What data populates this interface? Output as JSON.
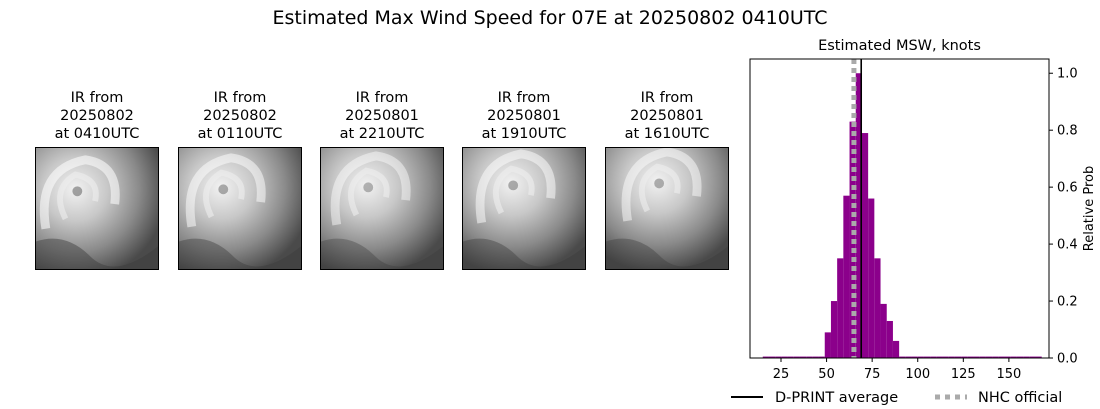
{
  "title": "Estimated Max Wind Speed for 07E at 20250802 0410UTC",
  "ir_panels": [
    {
      "line1": "IR from",
      "line2": "20250802",
      "line3": "at 0410UTC",
      "icon": "satellite-ir-image"
    },
    {
      "line1": "IR from",
      "line2": "20250802",
      "line3": "at 0110UTC",
      "icon": "satellite-ir-image"
    },
    {
      "line1": "IR from",
      "line2": "20250801",
      "line3": "at 2210UTC",
      "icon": "satellite-ir-image"
    },
    {
      "line1": "IR from",
      "line2": "20250801",
      "line3": "at 1910UTC",
      "icon": "satellite-ir-image"
    },
    {
      "line1": "IR from",
      "line2": "20250801",
      "line3": "at 1610UTC",
      "icon": "satellite-ir-image"
    }
  ],
  "chart_data": {
    "type": "bar",
    "title": "Estimated MSW, knots",
    "xlabel": "",
    "ylabel": "Relative Prob",
    "xlim": [
      8,
      172
    ],
    "ylim": [
      0,
      1.05
    ],
    "xticks": [
      25,
      50,
      75,
      100,
      125,
      150
    ],
    "yticks": [
      0.0,
      0.2,
      0.4,
      0.6,
      0.8,
      1.0
    ],
    "ytick_labels": [
      "0.0",
      "0.2",
      "0.4",
      "0.6",
      "0.8",
      "1.0"
    ],
    "bar_width": 3.4,
    "bar_color": "#8b008b",
    "bars": [
      {
        "x": 16.7,
        "value": 0.005
      },
      {
        "x": 20.1,
        "value": 0.005
      },
      {
        "x": 23.5,
        "value": 0.005
      },
      {
        "x": 26.9,
        "value": 0.005
      },
      {
        "x": 30.3,
        "value": 0.005
      },
      {
        "x": 33.7,
        "value": 0.005
      },
      {
        "x": 37.1,
        "value": 0.005
      },
      {
        "x": 40.5,
        "value": 0.005
      },
      {
        "x": 43.9,
        "value": 0.005
      },
      {
        "x": 47.3,
        "value": 0.005
      },
      {
        "x": 50.7,
        "value": 0.09
      },
      {
        "x": 54.1,
        "value": 0.2
      },
      {
        "x": 57.5,
        "value": 0.35
      },
      {
        "x": 60.9,
        "value": 0.57
      },
      {
        "x": 64.3,
        "value": 0.83
      },
      {
        "x": 67.7,
        "value": 1.0
      },
      {
        "x": 71.1,
        "value": 0.79
      },
      {
        "x": 74.5,
        "value": 0.56
      },
      {
        "x": 77.9,
        "value": 0.35
      },
      {
        "x": 81.3,
        "value": 0.19
      },
      {
        "x": 84.7,
        "value": 0.13
      },
      {
        "x": 88.1,
        "value": 0.06
      },
      {
        "x": 91.5,
        "value": 0.005
      },
      {
        "x": 94.9,
        "value": 0.005
      },
      {
        "x": 98.3,
        "value": 0.005
      },
      {
        "x": 101.7,
        "value": 0.005
      },
      {
        "x": 105.1,
        "value": 0.005
      },
      {
        "x": 108.5,
        "value": 0.005
      },
      {
        "x": 111.9,
        "value": 0.005
      },
      {
        "x": 115.3,
        "value": 0.005
      },
      {
        "x": 118.7,
        "value": 0.005
      },
      {
        "x": 122.1,
        "value": 0.005
      },
      {
        "x": 125.5,
        "value": 0.005
      },
      {
        "x": 128.9,
        "value": 0.005
      },
      {
        "x": 132.3,
        "value": 0.005
      },
      {
        "x": 135.7,
        "value": 0.005
      },
      {
        "x": 139.1,
        "value": 0.005
      },
      {
        "x": 142.5,
        "value": 0.005
      },
      {
        "x": 145.9,
        "value": 0.005
      },
      {
        "x": 149.3,
        "value": 0.005
      },
      {
        "x": 152.7,
        "value": 0.005
      },
      {
        "x": 156.1,
        "value": 0.005
      },
      {
        "x": 159.5,
        "value": 0.005
      },
      {
        "x": 162.9,
        "value": 0.005
      },
      {
        "x": 166.3,
        "value": 0.005
      }
    ],
    "dprint_average": 69,
    "nhc_official": 65,
    "legend": [
      {
        "label": "D-PRINT average",
        "style": "solid",
        "color": "#000000"
      },
      {
        "label": "NHC official",
        "style": "dotted",
        "color": "#aaaaaa"
      }
    ],
    "legend_placement": "bottom"
  }
}
